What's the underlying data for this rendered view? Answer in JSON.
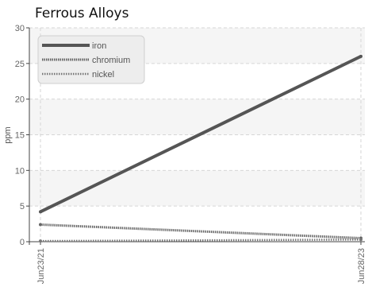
{
  "chart_data": {
    "type": "line",
    "title": "Ferrous Alloys",
    "xlabel": "",
    "ylabel": "ppm",
    "x": [
      "Jun23/21",
      "Jun28/23"
    ],
    "x_tick_labels": [
      "Jun23/21",
      "Jun28/23"
    ],
    "y_ticks": [
      0,
      5,
      10,
      15,
      20,
      25,
      30
    ],
    "ylim": [
      0,
      30
    ],
    "grid": true,
    "legend_position": "top-left",
    "series": [
      {
        "name": "iron",
        "values": [
          4.2,
          26.0
        ],
        "color": "#555555",
        "style": "solid"
      },
      {
        "name": "chromium",
        "values": [
          2.4,
          0.5
        ],
        "color": "#666666",
        "style": "dotted-thick"
      },
      {
        "name": "nickel",
        "values": [
          0.1,
          0.3
        ],
        "color": "#777777",
        "style": "dotted-thin"
      }
    ]
  },
  "colors": {
    "band": "#f5f5f5",
    "grid": "#d6d6d6",
    "axis": "#444444"
  }
}
